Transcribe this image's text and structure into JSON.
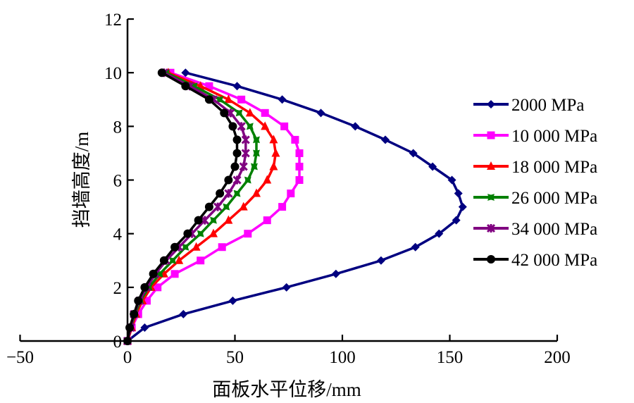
{
  "chart_data": {
    "type": "line",
    "title": "",
    "xlabel": "面板水平位移/mm",
    "ylabel": "挡墙高度/m",
    "xlim": [
      -50,
      200
    ],
    "ylim": [
      0,
      12
    ],
    "xticks": [
      -50,
      0,
      50,
      100,
      150,
      200
    ],
    "xtick_labels": [
      "−50",
      "0",
      "50",
      "100",
      "150",
      "200"
    ],
    "yticks": [
      0,
      2,
      4,
      6,
      8,
      10,
      12
    ],
    "ytick_labels": [
      "0",
      "2",
      "4",
      "6",
      "8",
      "10",
      "12"
    ],
    "grid": false,
    "legend_position": "right",
    "y": [
      0,
      0.5,
      1.0,
      1.5,
      2.0,
      2.5,
      3.0,
      3.5,
      4.0,
      4.5,
      5.0,
      5.5,
      6.0,
      6.5,
      7.0,
      7.5,
      8.0,
      8.5,
      9.0,
      9.5,
      10.0
    ],
    "series": [
      {
        "name": "2000 MPa",
        "color": "#000080",
        "marker": "diamond",
        "x": [
          0,
          8,
          26,
          49,
          74,
          97,
          118,
          134,
          145,
          153,
          156,
          154,
          151,
          142,
          133,
          120,
          106,
          90,
          72,
          51,
          27
        ]
      },
      {
        "name": "10 000 MPa",
        "color": "#ff00ff",
        "marker": "square",
        "x": [
          0,
          2,
          5,
          9,
          14,
          22,
          34,
          44,
          56,
          65,
          72,
          76,
          80,
          80,
          80,
          78,
          73,
          64,
          53,
          38,
          20
        ]
      },
      {
        "name": "18 000 MPa",
        "color": "#ff0000",
        "marker": "triangle",
        "x": [
          0,
          2,
          4,
          7,
          11,
          17,
          24,
          32,
          40,
          47,
          54,
          60,
          65,
          68,
          69,
          68,
          64,
          57,
          47,
          34,
          19
        ]
      },
      {
        "name": "26 000 MPa",
        "color": "#008000",
        "marker": "star",
        "x": [
          0,
          1.5,
          3.5,
          6,
          10,
          15,
          21,
          27,
          34,
          40,
          46,
          51,
          56,
          59,
          60,
          60,
          57,
          52,
          43,
          31,
          18
        ]
      },
      {
        "name": "34 000 MPa",
        "color": "#800080",
        "marker": "asterisk",
        "x": [
          0,
          1.5,
          3,
          5.5,
          9,
          13,
          18,
          24,
          30,
          36,
          42,
          47,
          51,
          54,
          55,
          55,
          53,
          48,
          40,
          29,
          17
        ]
      },
      {
        "name": "42 000 MPa",
        "color": "#000000",
        "marker": "circle",
        "x": [
          0,
          1,
          3,
          5,
          8,
          12,
          17,
          22,
          28,
          33,
          38,
          43,
          47,
          50,
          51,
          51,
          49,
          45,
          38,
          27,
          16
        ]
      }
    ]
  }
}
